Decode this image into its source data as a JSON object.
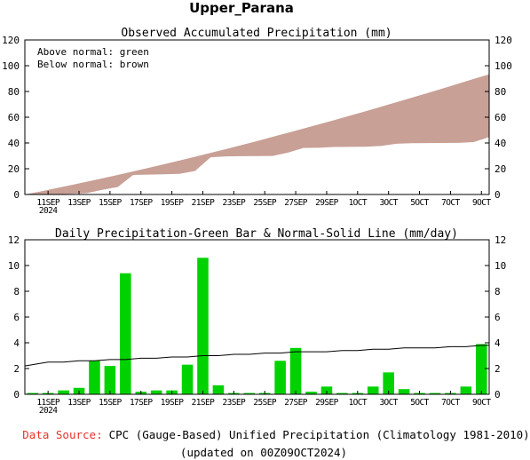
{
  "title": "Upper_Parana",
  "footer": {
    "source_label": "Data Source:",
    "source_text": "CPC (Gauge-Based) Unified Precipitation (Climatology 1981-2010)",
    "updated": "(updated on 00Z09OCT2024)",
    "source_label_color": "#e8332a"
  },
  "chart_data": [
    {
      "type": "area",
      "title": "Observed Accumulated Precipitation (mm)",
      "legend_lines": [
        "Above normal: green",
        "Below normal: brown"
      ],
      "colors": {
        "above_normal": "#00d200",
        "below_normal": "#c8a096"
      },
      "ylim": [
        0,
        120
      ],
      "y_ticks": [
        0,
        20,
        40,
        60,
        80,
        100,
        120
      ],
      "x_tick_labels": [
        "11SEP",
        "13SEP",
        "15SEP",
        "17SEP",
        "19SEP",
        "21SEP",
        "23SEP",
        "25SEP",
        "27SEP",
        "29SEP",
        "1OCT",
        "3OCT",
        "5OCT",
        "7OCT",
        "9OCT"
      ],
      "x_tick_year": "2024",
      "start_date": "2024-09-10",
      "days": [
        "2024-09-10",
        "2024-09-11",
        "2024-09-12",
        "2024-09-13",
        "2024-09-14",
        "2024-09-15",
        "2024-09-16",
        "2024-09-17",
        "2024-09-18",
        "2024-09-19",
        "2024-09-20",
        "2024-09-21",
        "2024-09-22",
        "2024-09-23",
        "2024-09-24",
        "2024-09-25",
        "2024-09-26",
        "2024-09-27",
        "2024-09-28",
        "2024-09-29",
        "2024-09-30",
        "2024-10-01",
        "2024-10-02",
        "2024-10-03",
        "2024-10-04",
        "2024-10-05",
        "2024-10-06",
        "2024-10-07",
        "2024-10-08",
        "2024-10-09"
      ],
      "observed": [
        0.1,
        0.2,
        0.5,
        1.0,
        3.6,
        5.8,
        15.2,
        15.4,
        15.7,
        16.0,
        18.3,
        28.9,
        29.6,
        29.7,
        29.8,
        29.9,
        32.5,
        36.1,
        36.3,
        36.9,
        37.0,
        37.1,
        37.7,
        39.4,
        39.8,
        39.9,
        40.0,
        40.1,
        40.7,
        44.6
      ],
      "normal": [
        2.3,
        4.8,
        7.3,
        9.9,
        12.5,
        15.2,
        17.9,
        20.7,
        23.5,
        26.4,
        29.3,
        32.3,
        35.3,
        38.4,
        41.5,
        44.7,
        47.9,
        51.2,
        54.5,
        57.8,
        61.2,
        64.6,
        68.1,
        71.6,
        75.2,
        78.7,
        82.3,
        86.0,
        89.7,
        93.4
      ]
    },
    {
      "type": "bar",
      "title": "Daily Precipitation-Green Bar & Normal-Solid Line (mm/day)",
      "colors": {
        "bar": "#00d200",
        "normal_line": "#000000"
      },
      "ylim": [
        0,
        12
      ],
      "y_ticks": [
        0,
        2,
        4,
        6,
        8,
        10,
        12
      ],
      "x_tick_labels": [
        "11SEP",
        "13SEP",
        "15SEP",
        "17SEP",
        "19SEP",
        "21SEP",
        "23SEP",
        "25SEP",
        "27SEP",
        "29SEP",
        "1OCT",
        "3OCT",
        "5OCT",
        "7OCT",
        "9OCT"
      ],
      "x_tick_year": "2024",
      "days": [
        "2024-09-10",
        "2024-09-11",
        "2024-09-12",
        "2024-09-13",
        "2024-09-14",
        "2024-09-15",
        "2024-09-16",
        "2024-09-17",
        "2024-09-18",
        "2024-09-19",
        "2024-09-20",
        "2024-09-21",
        "2024-09-22",
        "2024-09-23",
        "2024-09-24",
        "2024-09-25",
        "2024-09-26",
        "2024-09-27",
        "2024-09-28",
        "2024-09-29",
        "2024-09-30",
        "2024-10-01",
        "2024-10-02",
        "2024-10-03",
        "2024-10-04",
        "2024-10-05",
        "2024-10-06",
        "2024-10-07",
        "2024-10-08",
        "2024-10-09"
      ],
      "values": [
        0.1,
        0.1,
        0.3,
        0.5,
        2.6,
        2.2,
        9.4,
        0.2,
        0.3,
        0.3,
        2.3,
        10.6,
        0.7,
        0.1,
        0.1,
        0.1,
        2.6,
        3.6,
        0.2,
        0.6,
        0.1,
        0.1,
        0.6,
        1.7,
        0.4,
        0.1,
        0.1,
        0.1,
        0.6,
        3.9
      ],
      "normal": [
        2.3,
        2.5,
        2.5,
        2.6,
        2.6,
        2.7,
        2.7,
        2.8,
        2.8,
        2.9,
        2.9,
        3.0,
        3.0,
        3.1,
        3.1,
        3.2,
        3.2,
        3.3,
        3.3,
        3.3,
        3.4,
        3.4,
        3.5,
        3.5,
        3.6,
        3.6,
        3.6,
        3.7,
        3.7,
        3.8
      ]
    }
  ]
}
